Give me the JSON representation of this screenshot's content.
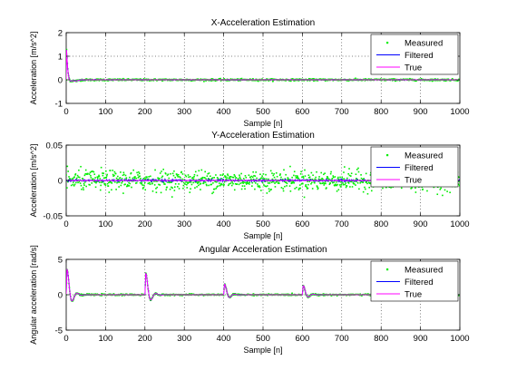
{
  "chart_data": [
    {
      "type": "line",
      "title": "X-Acceleration Estimation",
      "xlabel": "Sample [n]",
      "ylabel": "Acceleration [m/s^2]",
      "xlim": [
        0,
        1000
      ],
      "ylim": [
        -1,
        2
      ],
      "xticks": [
        0,
        100,
        200,
        300,
        400,
        500,
        600,
        700,
        800,
        900,
        1000
      ],
      "yticks": [
        -1,
        0,
        1,
        2
      ],
      "grid": true,
      "legend_position": "top-right",
      "series": [
        {
          "name": "Measured",
          "color": "#00ee00",
          "style": "points",
          "signal": "x_spike",
          "noise": 0.02
        },
        {
          "name": "Filtered",
          "color": "#0000ff",
          "style": "line",
          "signal": "x_spike",
          "noise": 0.006
        },
        {
          "name": "True",
          "color": "#ff00ff",
          "style": "line",
          "signal": "x_spike",
          "noise": 0
        }
      ],
      "key_points": [
        [
          0,
          0
        ],
        [
          5,
          1.6
        ],
        [
          10,
          0.9
        ],
        [
          20,
          0.0
        ],
        [
          30,
          -0.05
        ],
        [
          1000,
          0
        ]
      ]
    },
    {
      "type": "line",
      "title": "Y-Acceleration Estimation",
      "xlabel": "Sample [n]",
      "ylabel": "Acceleration [m/s^2]",
      "xlim": [
        0,
        1000
      ],
      "ylim": [
        -0.05,
        0.05
      ],
      "xticks": [
        0,
        100,
        200,
        300,
        400,
        500,
        600,
        700,
        800,
        900,
        1000
      ],
      "yticks": [
        -0.05,
        0,
        0.05
      ],
      "grid": true,
      "legend_position": "top-right",
      "series": [
        {
          "name": "Measured",
          "color": "#00ee00",
          "style": "points",
          "signal": "zero",
          "noise": 0.007
        },
        {
          "name": "Filtered",
          "color": "#0000ff",
          "style": "line",
          "signal": "zero",
          "noise": 0.0007
        },
        {
          "name": "True",
          "color": "#ff00ff",
          "style": "line",
          "signal": "zero",
          "noise": 0
        }
      ]
    },
    {
      "type": "line",
      "title": "Angular Acceleration Estimation",
      "xlabel": "Sample [n]",
      "ylabel": "Angular acceleration [rad/s]",
      "xlim": [
        0,
        1000
      ],
      "ylim": [
        -5,
        5
      ],
      "xticks": [
        0,
        100,
        200,
        300,
        400,
        500,
        600,
        700,
        800,
        900,
        1000
      ],
      "yticks": [
        -5,
        0,
        5
      ],
      "grid": true,
      "legend_position": "top-right",
      "series": [
        {
          "name": "Measured",
          "color": "#00ee00",
          "style": "points",
          "signal": "angular_pulses",
          "noise": 0.05
        },
        {
          "name": "Filtered",
          "color": "#0000ff",
          "style": "line",
          "signal": "angular_pulses",
          "noise": 0.01
        },
        {
          "name": "True",
          "color": "#ff00ff",
          "style": "line",
          "signal": "angular_pulses",
          "noise": 0
        }
      ],
      "pulses": [
        {
          "start": 0,
          "amplitude": 5
        },
        {
          "start": 200,
          "amplitude": 4.2
        },
        {
          "start": 400,
          "amplitude": 2.1
        },
        {
          "start": 600,
          "amplitude": 1.8
        }
      ]
    }
  ]
}
